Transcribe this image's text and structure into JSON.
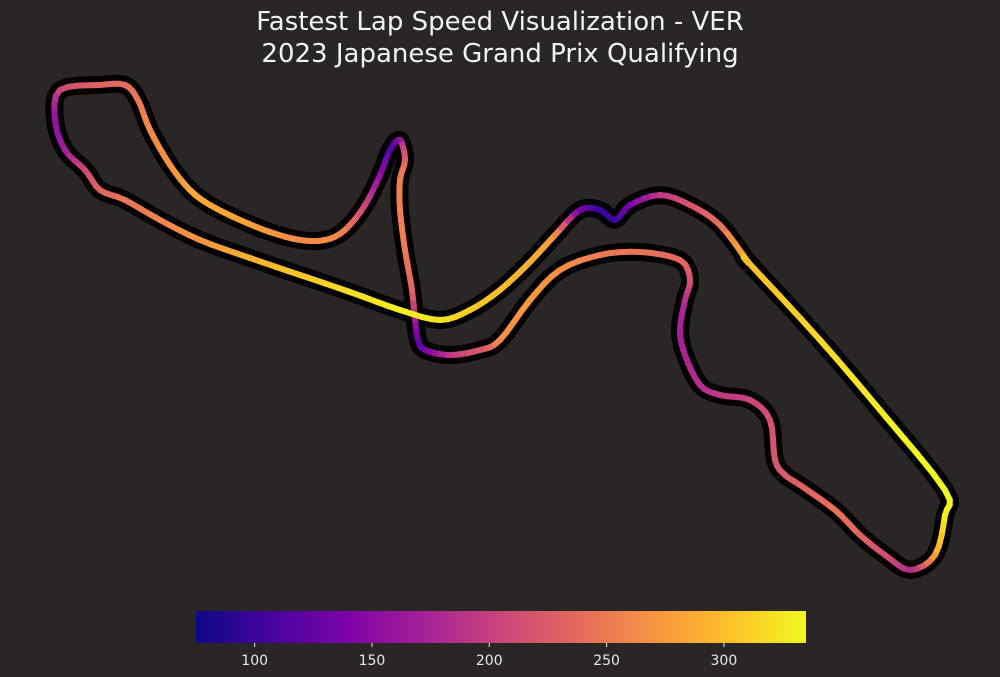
{
  "chart_data": {
    "type": "line",
    "title": "Fastest Lap Speed Visualization - VER",
    "subtitle": "2023 Japanese Grand Prix Qualifying",
    "colormap": "plasma",
    "colorbar": {
      "min": 75,
      "max": 335,
      "ticks": [
        100,
        150,
        200,
        250,
        300
      ],
      "tick_labels": [
        "100",
        "150",
        "200",
        "250",
        "300"
      ]
    },
    "speed_series": {
      "x": [
        748,
        820,
        880,
        945,
        945,
        935,
        910,
        885,
        860,
        835,
        800,
        785,
        775,
        770,
        750,
        720,
        700,
        685,
        680,
        685,
        690,
        680,
        640,
        600,
        560,
        530,
        500,
        480,
        450,
        425,
        418,
        415,
        412,
        405,
        400,
        400,
        405,
        400,
        390,
        380,
        365,
        345,
        325,
        300,
        270,
        240,
        210,
        190,
        170,
        150,
        138,
        125,
        100,
        60,
        55,
        65,
        85,
        100,
        125,
        160,
        200,
        250,
        300,
        350,
        400,
        440,
        470,
        500,
        530,
        555,
        580,
        600,
        615,
        630,
        660,
        690,
        720,
        748
      ],
      "y": [
        262,
        340,
        410,
        490,
        515,
        555,
        570,
        555,
        535,
        510,
        485,
        475,
        460,
        420,
        400,
        395,
        385,
        355,
        330,
        300,
        280,
        260,
        252,
        255,
        270,
        300,
        340,
        350,
        355,
        350,
        340,
        320,
        290,
        250,
        210,
        180,
        160,
        140,
        150,
        175,
        205,
        230,
        240,
        240,
        232,
        220,
        205,
        190,
        165,
        130,
        100,
        85,
        85,
        90,
        120,
        150,
        170,
        190,
        200,
        220,
        240,
        258,
        275,
        292,
        310,
        320,
        310,
        290,
        262,
        235,
        210,
        210,
        220,
        205,
        195,
        205,
        225,
        262
      ],
      "speed": [
        300,
        315,
        328,
        336,
        330,
        290,
        180,
        210,
        230,
        245,
        230,
        225,
        220,
        215,
        205,
        195,
        185,
        175,
        170,
        180,
        215,
        235,
        245,
        250,
        265,
        275,
        265,
        225,
        200,
        140,
        120,
        160,
        230,
        250,
        255,
        255,
        240,
        180,
        110,
        150,
        200,
        250,
        265,
        260,
        270,
        280,
        285,
        285,
        270,
        262,
        250,
        240,
        232,
        210,
        155,
        165,
        205,
        230,
        245,
        255,
        270,
        290,
        305,
        318,
        330,
        322,
        310,
        300,
        290,
        275,
        140,
        100,
        100,
        135,
        190,
        215,
        240,
        300
      ]
    }
  }
}
